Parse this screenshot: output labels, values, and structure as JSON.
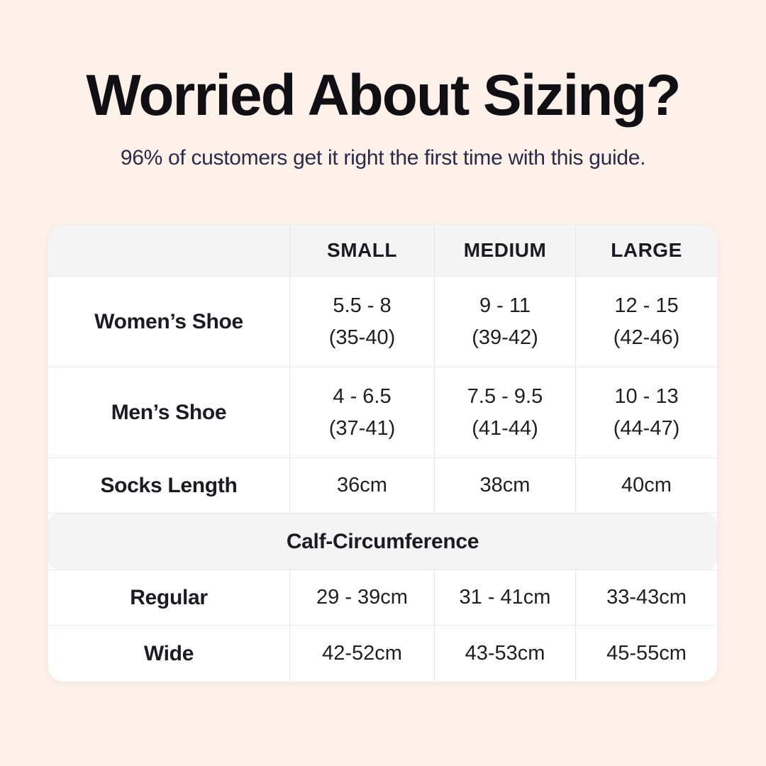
{
  "header": {
    "title": "Worried About Sizing?",
    "subtitle": "96% of customers get it right the first time with this guide."
  },
  "table": {
    "columns": [
      "SMALL",
      "MEDIUM",
      "LARGE"
    ],
    "rows_top": [
      {
        "label": "Women’s Shoe",
        "cells": [
          {
            "line1": "5.5 - 8",
            "line2": "(35-40)"
          },
          {
            "line1": "9 - 11",
            "line2": "(39-42)"
          },
          {
            "line1": "12 - 15",
            "line2": "(42-46)"
          }
        ]
      },
      {
        "label": "Men’s Shoe",
        "cells": [
          {
            "line1": "4 - 6.5",
            "line2": "(37-41)"
          },
          {
            "line1": "7.5 - 9.5",
            "line2": "(41-44)"
          },
          {
            "line1": "10 - 13",
            "line2": "(44-47)"
          }
        ]
      },
      {
        "label": "Socks Length",
        "cells": [
          {
            "line1": "36cm"
          },
          {
            "line1": "38cm"
          },
          {
            "line1": "40cm"
          }
        ]
      }
    ],
    "section_header": "Calf-Circumference",
    "rows_bottom": [
      {
        "label": "Regular",
        "cells": [
          {
            "line1": "29 - 39cm"
          },
          {
            "line1": "31 - 41cm"
          },
          {
            "line1": "33-43cm"
          }
        ]
      },
      {
        "label": "Wide",
        "cells": [
          {
            "line1": "42-52cm"
          },
          {
            "line1": "43-53cm"
          },
          {
            "line1": "45-55cm"
          }
        ]
      }
    ]
  },
  "colors": {
    "background": "#fdf1e9",
    "card_white": "#ffffff",
    "header_gray": "#f4f4f4",
    "gridline": "#e9e9e9",
    "title_text": "#101014",
    "subtitle_navy": "#2b2b49",
    "table_text": "#1b1b24"
  },
  "chart_data": {
    "type": "table",
    "title": "Worried About Sizing?",
    "subtitle": "96% of customers get it right the first time with this guide.",
    "columns": [
      "",
      "SMALL",
      "MEDIUM",
      "LARGE"
    ],
    "rows": [
      [
        "Women’s Shoe",
        "5.5 - 8 (35-40)",
        "9 - 11 (39-42)",
        "12 - 15 (42-46)"
      ],
      [
        "Men’s Shoe",
        "4 - 6.5 (37-41)",
        "7.5 - 9.5 (41-44)",
        "10 - 13 (44-47)"
      ],
      [
        "Socks Length",
        "36cm",
        "38cm",
        "40cm"
      ],
      [
        "Calf-Circumference",
        "",
        "",
        ""
      ],
      [
        "Regular",
        "29 - 39cm",
        "31 - 41cm",
        "33-43cm"
      ],
      [
        "Wide",
        "42-52cm",
        "43-53cm",
        "45-55cm"
      ]
    ],
    "layout": {
      "section_row_index": 3,
      "header_row_shaded": true,
      "grid": true
    }
  }
}
